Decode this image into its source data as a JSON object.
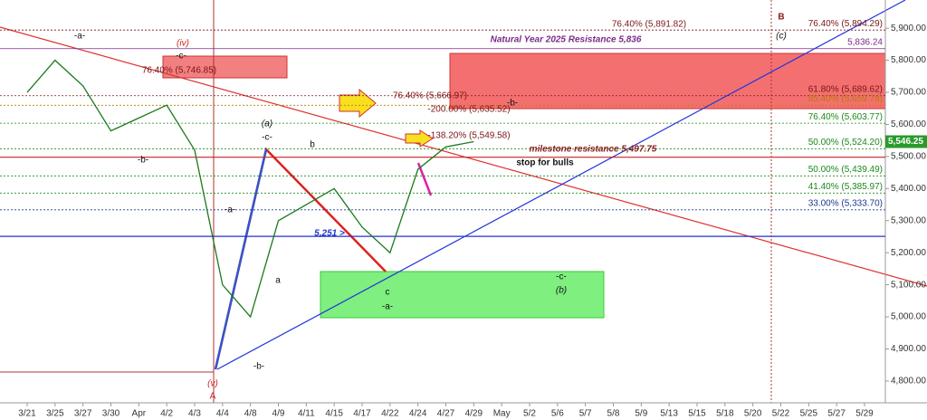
{
  "chart_data": {
    "type": "line",
    "categories": [
      "3/21",
      "3/25",
      "3/27",
      "3/30",
      "Apr",
      "4/2",
      "4/3",
      "4/4",
      "4/8",
      "4/9",
      "4/11",
      "4/15",
      "4/17",
      "4/22",
      "4/24",
      "4/27",
      "4/29",
      "May",
      "5/2",
      "5/6",
      "5/7",
      "5/8",
      "5/9",
      "5/13",
      "5/15",
      "5/18",
      "5/20",
      "5/22",
      "5/25",
      "5/27",
      "5/29"
    ],
    "series": [
      {
        "color": "#1a7a1a",
        "values": [
          5700,
          5800,
          5720,
          5580,
          5620,
          5660,
          5520,
          5100,
          5000,
          5300,
          5350,
          5400,
          5280,
          5200,
          5460,
          5530,
          5546.25,
          null,
          null,
          null,
          null,
          null,
          null,
          null,
          null,
          null,
          null,
          null,
          null,
          null,
          null
        ]
      }
    ],
    "ylim": [
      4732,
      5988
    ],
    "yticks": [
      {
        "value": 4800,
        "label": "4,800.00"
      },
      {
        "value": 4900,
        "label": "4,900.00"
      },
      {
        "value": 5000,
        "label": "5,000.00"
      },
      {
        "value": 5100,
        "label": "5,100.00"
      },
      {
        "value": 5200,
        "label": "5,200.00"
      },
      {
        "value": 5300,
        "label": "5,300.00"
      },
      {
        "value": 5400,
        "label": "5,400.00"
      },
      {
        "value": 5500,
        "label": "5,500.00"
      },
      {
        "value": 5600,
        "label": "5,600.00"
      },
      {
        "value": 5700,
        "label": "5,700.00"
      },
      {
        "value": 5800,
        "label": "5,800.00"
      },
      {
        "value": 5900,
        "label": "5,900.00"
      }
    ],
    "current_price": {
      "value": 5546.25,
      "label": "5,546.25"
    },
    "levels": [
      {
        "value": 5894.29,
        "label": "76.40% (5,894.29)",
        "color": "#7a1515"
      },
      {
        "value": 5836.24,
        "label": "5,836.24",
        "color": "#7a2a8a"
      },
      {
        "value": 5689.62,
        "label": "61.80% (5,689.62)",
        "color": "#7a1515"
      },
      {
        "value": 5659.78,
        "label": "85.40% (5,659.78)",
        "color": "#b08000"
      },
      {
        "value": 5603.77,
        "label": "76.40% (5,603.77)",
        "color": "#1a8a1a"
      },
      {
        "value": 5524.2,
        "label": "50.00% (5,524.20)",
        "color": "#1a8a1a"
      },
      {
        "value": 5439.49,
        "label": "50.00% (5,439.49)",
        "color": "#1a8a1a"
      },
      {
        "value": 5385.97,
        "label": "41.40% (5,385.97)",
        "color": "#1a8a1a"
      },
      {
        "value": 5333.7,
        "label": "33.00% (5,333.70)",
        "color": "#1a3a8a"
      },
      {
        "value": 5497.75,
        "color": "#cc2222"
      },
      {
        "value": 5251,
        "color": "#2233cc"
      }
    ],
    "annotations": [
      "-a-",
      "(iv)",
      "-c-",
      "76.40% (5,746.85)",
      "-b-",
      "(a)",
      "-c-",
      "b",
      "-a-",
      "a",
      "-b-",
      "(v)",
      "A",
      "5,251 >",
      "c",
      "-a-",
      "-c-",
      "(b)",
      "76.40% (5,666.97)",
      "-200.00% (5,635.52)",
      "-138.20% (5,549.58)",
      "-b-",
      "milestone resistance 5,497.75",
      "stop for bulls",
      "Natural Year 2025 Resistance 5,836",
      "76.40% (5,891.82)",
      "B",
      "(c)"
    ]
  }
}
